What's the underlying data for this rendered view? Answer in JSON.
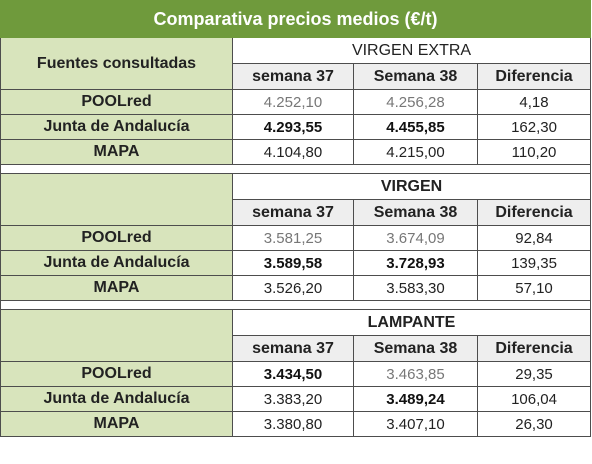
{
  "title": "Comparativa precios medios (€/t)",
  "sources_header": "Fuentes consultadas",
  "sections": [
    {
      "name": "VIRGEN EXTRA",
      "name_bold": false,
      "columns": [
        "semana 37",
        "Semana 38",
        "Diferencia"
      ],
      "rows": [
        {
          "source": "POOLred",
          "w37": "4.252,10",
          "w38": "4.256,28",
          "diff": "4,18"
        },
        {
          "source": "Junta de Andalucía",
          "w37": "4.293,55",
          "w38": "4.455,85",
          "diff": "162,30"
        },
        {
          "source": "MAPA",
          "w37": "4.104,80",
          "w38": "4.215,00",
          "diff": "110,20"
        }
      ]
    },
    {
      "name": "VIRGEN",
      "name_bold": true,
      "columns": [
        "semana 37",
        "Semana 38",
        "Diferencia"
      ],
      "rows": [
        {
          "source": "POOLred",
          "w37": "3.581,25",
          "w38": "3.674,09",
          "diff": "92,84"
        },
        {
          "source": "Junta de Andalucía",
          "w37": "3.589,58",
          "w38": "3.728,93",
          "diff": "139,35"
        },
        {
          "source": "MAPA",
          "w37": "3.526,20",
          "w38": "3.583,30",
          "diff": "57,10"
        }
      ]
    },
    {
      "name": "LAMPANTE",
      "name_bold": true,
      "columns": [
        "semana 37",
        "Semana 38",
        "Diferencia"
      ],
      "rows": [
        {
          "source": "POOLred",
          "w37": "3.434,50",
          "w38": "3.463,85",
          "diff": "29,35"
        },
        {
          "source": "Junta de Andalucía",
          "w37": "3.383,20",
          "w38": "3.489,24",
          "diff": "106,04"
        },
        {
          "source": "MAPA",
          "w37": "3.380,80",
          "w38": "3.407,10",
          "diff": "26,30"
        }
      ]
    }
  ]
}
